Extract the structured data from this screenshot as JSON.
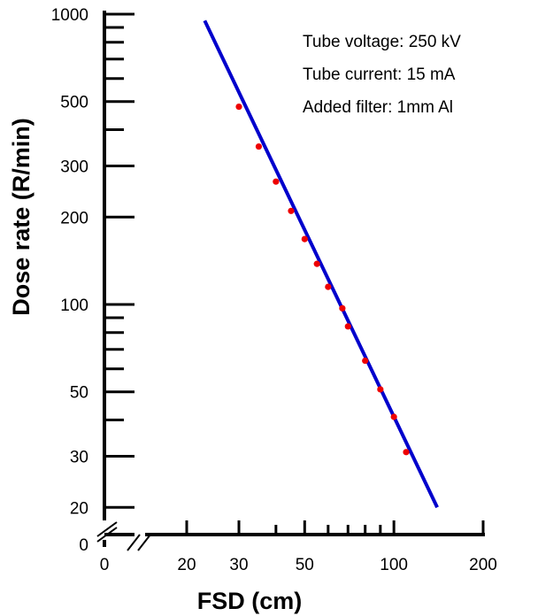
{
  "chart_data": {
    "type": "scatter",
    "title": "",
    "xlabel": "FSD (cm)",
    "ylabel": "Dose rate (R/min)",
    "x_scale": "log",
    "y_scale": "log",
    "xlim": [
      10,
      200
    ],
    "ylim": [
      20,
      1000
    ],
    "x_ticks": [
      20,
      30,
      50,
      100,
      200
    ],
    "x_minor_ticks": [
      40,
      60,
      70,
      80,
      90
    ],
    "x_origin_label": "0",
    "y_ticks": [
      20,
      30,
      50,
      100,
      200,
      300,
      500,
      1000
    ],
    "y_minor_ticks": [
      40,
      60,
      70,
      80,
      90,
      400,
      600,
      700,
      800,
      900
    ],
    "y_origin_label": "0",
    "axis_breaks": true,
    "grid": false,
    "annotations": [
      "Tube voltage: 250 kV",
      "Tube current: 15 mA",
      "Added filter: 1mm Al"
    ],
    "points": [
      {
        "x": 30,
        "y": 480
      },
      {
        "x": 35,
        "y": 350
      },
      {
        "x": 40,
        "y": 265
      },
      {
        "x": 45,
        "y": 210
      },
      {
        "x": 50,
        "y": 168
      },
      {
        "x": 55,
        "y": 138
      },
      {
        "x": 60,
        "y": 115
      },
      {
        "x": 67,
        "y": 97
      },
      {
        "x": 70,
        "y": 84
      },
      {
        "x": 80,
        "y": 64
      },
      {
        "x": 90,
        "y": 51
      },
      {
        "x": 100,
        "y": 41
      },
      {
        "x": 110,
        "y": 31
      }
    ],
    "fit_line": {
      "x": [
        23,
        140
      ],
      "y": [
        950,
        20
      ]
    },
    "colors": {
      "points": "#ee0000",
      "line": "#0000cc",
      "axis": "#000000"
    }
  }
}
